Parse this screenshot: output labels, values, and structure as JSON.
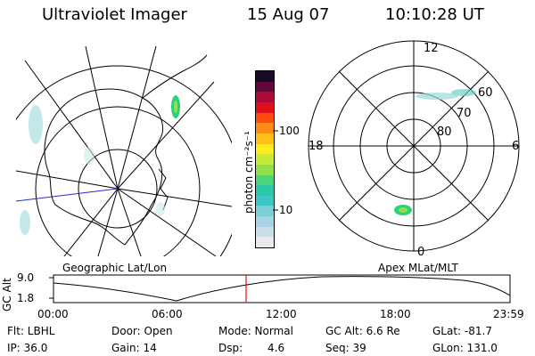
{
  "header": {
    "instrument": "Ultraviolet Imager",
    "date": "15 Aug 07",
    "time": "10:10:28 UT"
  },
  "colorbar": {
    "unit_label": "photon cm⁻²s⁻¹",
    "ticks": [
      "100",
      "10"
    ],
    "colors": [
      "#e9e9ee",
      "#c8dfe8",
      "#a7d3e2",
      "#7ccfd6",
      "#3cc6c6",
      "#2cc9a8",
      "#4cd47a",
      "#8fe04a",
      "#c7ea3a",
      "#ffec20",
      "#ffbe18",
      "#ff8a14",
      "#ff4a10",
      "#e0101a",
      "#b00a3a",
      "#60083a",
      "#1a0a2a"
    ]
  },
  "geo_panel": {
    "caption": "Geographic Lat/Lon"
  },
  "mag_panel": {
    "caption": "Apex MLat/MLT",
    "mlt_labels": {
      "top": "12",
      "left": "18",
      "right": "6",
      "bottom": "0"
    },
    "lat_labels": [
      "60",
      "70",
      "80"
    ]
  },
  "altitude_plot": {
    "ylabel": "GC Alt",
    "y_ticks": [
      "9.0",
      "1.8"
    ],
    "x_ticks": [
      "00:00",
      "06:00",
      "12:00",
      "18:00",
      "23:59"
    ],
    "current_time_marker": "10:10:28"
  },
  "status": {
    "row1": {
      "filter": "Flt: LBHL",
      "door": "Door: Open",
      "mode": "Mode: Normal",
      "gc_alt": "GC Alt: 6.6 Re",
      "glat": "GLat: -81.7"
    },
    "row2": {
      "ip": "IP: 36.0",
      "gain": "Gain: 14",
      "dsp_label": "Dsp:",
      "dsp_value": "4.6",
      "seq": "Seq: 39",
      "glon": "GLon: 131.0"
    }
  }
}
